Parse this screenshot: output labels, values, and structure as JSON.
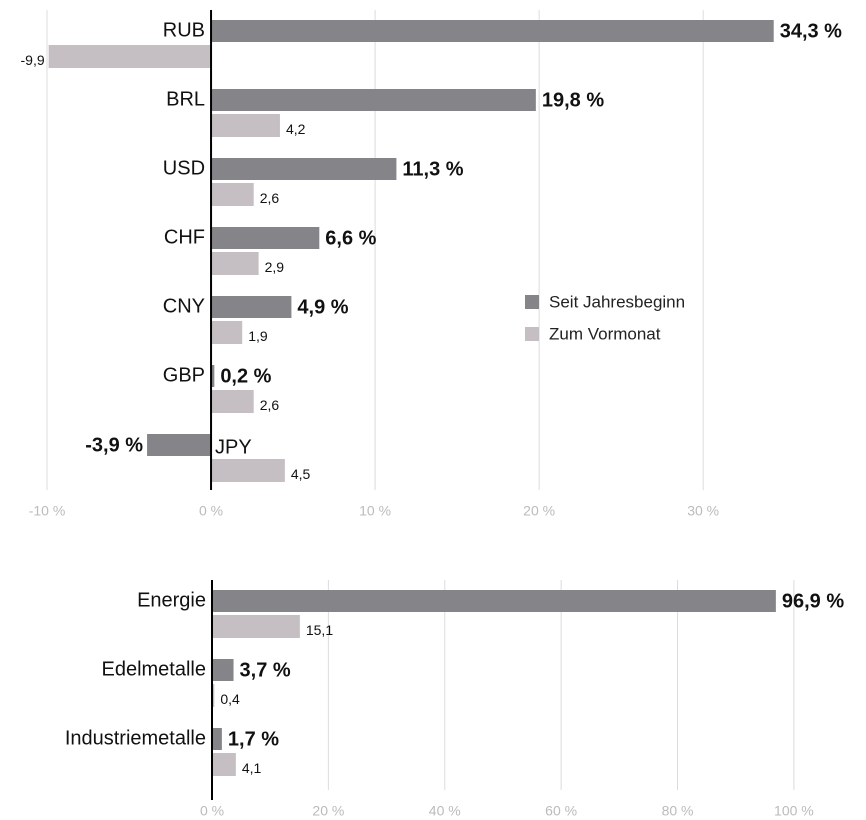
{
  "chart_data": [
    {
      "type": "bar",
      "orientation": "horizontal",
      "categories": [
        "RUB",
        "BRL",
        "USD",
        "CHF",
        "CNY",
        "GBP",
        "JPY"
      ],
      "series": [
        {
          "name": "Seit Jahresbeginn",
          "color": "#858488",
          "values": [
            34.3,
            19.8,
            11.3,
            6.6,
            4.9,
            0.2,
            -3.9
          ],
          "value_labels": [
            "34,3 %",
            "19,8 %",
            "11,3 %",
            "6,6 %",
            "4,9 %",
            "0,2 %",
            "-3,9 %"
          ]
        },
        {
          "name": "Zum Vormonat",
          "color": "#c5bfc3",
          "values": [
            -9.9,
            4.2,
            2.6,
            2.9,
            1.9,
            2.6,
            4.5
          ],
          "value_labels": [
            "-9,9",
            "4,2",
            "2,6",
            "2,9",
            "1,9",
            "2,6",
            "4,5"
          ]
        }
      ],
      "xlim": [
        -10,
        37
      ],
      "xticks": [
        {
          "value": -10,
          "label": "-10 %"
        },
        {
          "value": 0,
          "label": "0 %"
        },
        {
          "value": 10,
          "label": "10 %"
        },
        {
          "value": 20,
          "label": "20 %"
        },
        {
          "value": 30,
          "label": "30 %"
        }
      ],
      "grid": true,
      "legend": "right"
    },
    {
      "type": "bar",
      "orientation": "horizontal",
      "categories": [
        "Energie",
        "Edelmetalle",
        "Industriemetalle"
      ],
      "series": [
        {
          "color": "#858488",
          "values": [
            96.9,
            3.7,
            1.7
          ],
          "value_labels": [
            "96,9 %",
            "3,7 %",
            "1,7 %"
          ]
        },
        {
          "color": "#c5bfc3",
          "values": [
            15.1,
            0.4,
            4.1
          ],
          "value_labels": [
            "15,1",
            "0,4",
            "4,1"
          ]
        }
      ],
      "xlim": [
        0,
        105
      ],
      "xticks": [
        {
          "value": 0,
          "label": "0 %"
        },
        {
          "value": 20,
          "label": "20 %"
        },
        {
          "value": 40,
          "label": "40 %"
        },
        {
          "value": 60,
          "label": "60 %"
        },
        {
          "value": 80,
          "label": "80 %"
        },
        {
          "value": 100,
          "label": "100 %"
        }
      ],
      "grid": true
    }
  ]
}
